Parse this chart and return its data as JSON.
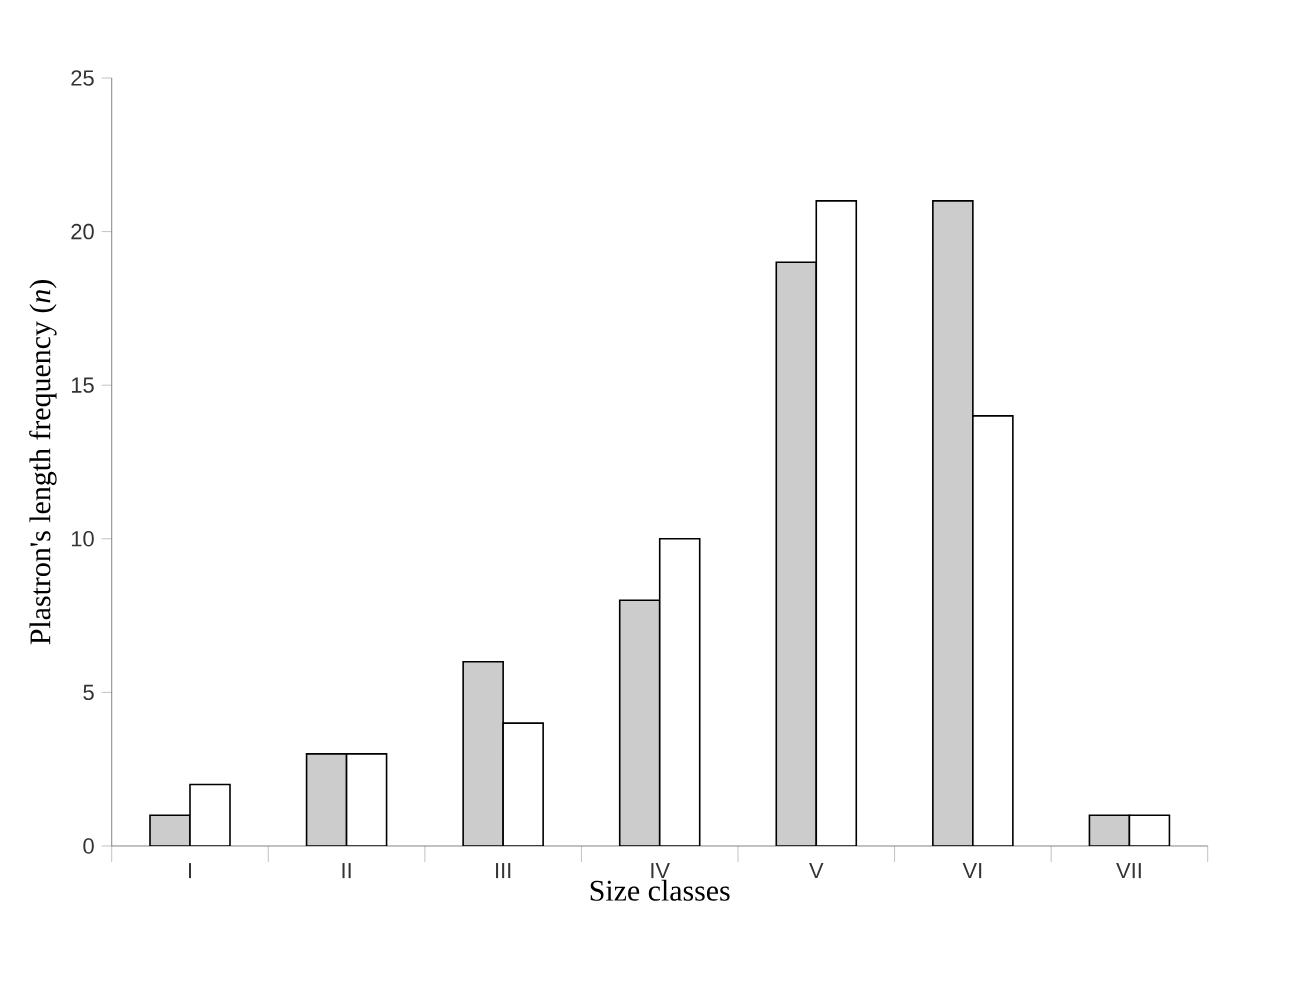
{
  "chart_data": {
    "type": "bar",
    "xlabel": "Size classes",
    "ylabel": "Plastron's length frequency (*n*)",
    "categories": [
      "I",
      "II",
      "III",
      "IV",
      "V",
      "VI",
      "VII"
    ],
    "series": [
      {
        "color": "#cccccc",
        "values": [
          1,
          3,
          6,
          8,
          19,
          21,
          1
        ]
      },
      {
        "color": "#ffffff",
        "values": [
          2,
          3,
          4,
          10,
          21,
          14,
          1
        ]
      }
    ],
    "ylim": [
      0,
      25
    ],
    "yticks": [
      0,
      5,
      10,
      15,
      20,
      25
    ],
    "grid": false
  }
}
